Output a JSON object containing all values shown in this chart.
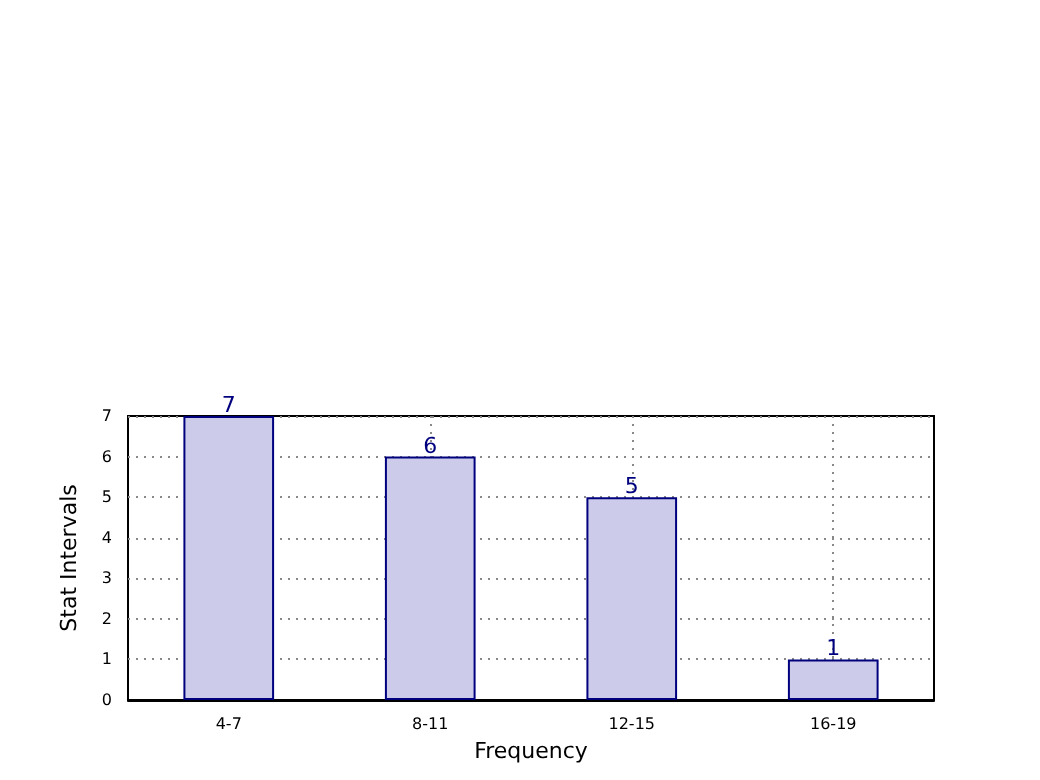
{
  "chart_data": {
    "type": "bar",
    "xlabel": "Frequency",
    "ylabel": "Stat Intervals",
    "categories": [
      "4-7",
      "8-11",
      "12-15",
      "16-19"
    ],
    "values": [
      7,
      6,
      5,
      1
    ],
    "color": "#ccccea",
    "ylim": [
      0,
      7
    ],
    "yticks": [
      0,
      1,
      2,
      3,
      4,
      5,
      6,
      7
    ],
    "grid": true,
    "data_labels": true
  }
}
